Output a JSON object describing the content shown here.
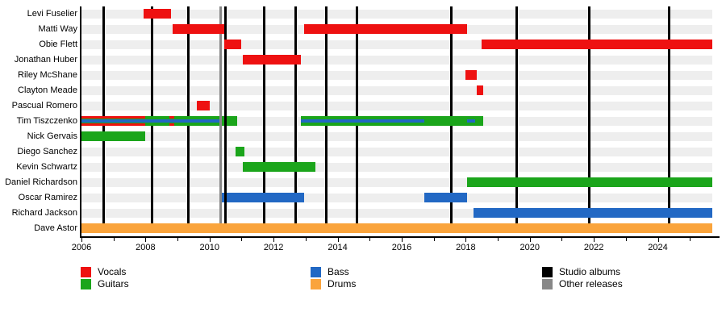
{
  "colors": {
    "vocals": "#ee1111",
    "guitars": "#1ba51b",
    "bass": "#2268c4",
    "drums": "#faa43c",
    "studio_albums": "#000000",
    "other_releases": "#888888"
  },
  "legend": {
    "columns": [
      {
        "items": [
          {
            "label": "Vocals",
            "key": "vocals"
          },
          {
            "label": "Guitars",
            "key": "guitars"
          }
        ]
      },
      {
        "items": [
          {
            "label": "Bass",
            "key": "bass"
          },
          {
            "label": "Drums",
            "key": "drums"
          }
        ]
      },
      {
        "items": [
          {
            "label": "Studio albums",
            "key": "studio_albums"
          },
          {
            "label": "Other releases",
            "key": "other_releases"
          }
        ]
      }
    ]
  },
  "chart_data": {
    "type": "timeline",
    "title": "",
    "x_axis": {
      "min": 2006,
      "max": 2025.7,
      "tick_step": 1,
      "label_years": [
        2006,
        2008,
        2010,
        2012,
        2014,
        2016,
        2018,
        2020,
        2022,
        2024
      ]
    },
    "studio_album_years": [
      2006.7,
      2008.2,
      2009.35,
      2010.5,
      2011.7,
      2012.7,
      2013.65,
      2014.6,
      2017.55,
      2019.6,
      2021.85,
      2024.35
    ],
    "other_release_years": [
      2010.35
    ],
    "members": [
      {
        "name": "Levi Fuselier",
        "segments": [
          {
            "role": "vocals",
            "start": 2007.95,
            "end": 2008.8,
            "band": "full"
          }
        ]
      },
      {
        "name": "Matti Way",
        "segments": [
          {
            "role": "vocals",
            "start": 2008.85,
            "end": 2010.45,
            "band": "full"
          },
          {
            "role": "vocals",
            "start": 2012.95,
            "end": 2018.05,
            "band": "full"
          }
        ]
      },
      {
        "name": "Obie Flett",
        "segments": [
          {
            "role": "vocals",
            "start": 2010.45,
            "end": 2011.0,
            "band": "full"
          },
          {
            "role": "vocals",
            "start": 2018.5,
            "end": 2025.7,
            "band": "full"
          }
        ]
      },
      {
        "name": "Jonathan Huber",
        "segments": [
          {
            "role": "vocals",
            "start": 2011.05,
            "end": 2012.85,
            "band": "full"
          }
        ]
      },
      {
        "name": "Riley McShane",
        "segments": [
          {
            "role": "vocals",
            "start": 2018.0,
            "end": 2018.35,
            "band": "full"
          }
        ]
      },
      {
        "name": "Clayton Meade",
        "segments": [
          {
            "role": "vocals",
            "start": 2018.35,
            "end": 2018.55,
            "band": "full"
          }
        ]
      },
      {
        "name": "Pascual Romero",
        "segments": [
          {
            "role": "vocals",
            "start": 2009.6,
            "end": 2010.0,
            "band": "full"
          }
        ]
      },
      {
        "name": "Tim Tiszczenko",
        "segments": [
          {
            "role": "guitars",
            "start": 2006.0,
            "end": 2010.85,
            "band": "full"
          },
          {
            "role": "bass",
            "start": 2006.0,
            "end": 2010.3,
            "band": "mid"
          },
          {
            "role": "vocals",
            "start": 2006.0,
            "end": 2008.0,
            "band": "edges"
          },
          {
            "role": "vocals",
            "start": 2008.75,
            "end": 2008.9,
            "band": "edges"
          },
          {
            "role": "guitars",
            "start": 2012.85,
            "end": 2018.55,
            "band": "full"
          },
          {
            "role": "bass",
            "start": 2012.85,
            "end": 2016.7,
            "band": "mid"
          },
          {
            "role": "bass",
            "start": 2018.05,
            "end": 2018.3,
            "band": "mid"
          }
        ]
      },
      {
        "name": "Nick Gervais",
        "segments": [
          {
            "role": "guitars",
            "start": 2006.0,
            "end": 2008.0,
            "band": "full"
          }
        ]
      },
      {
        "name": "Diego Sanchez",
        "segments": [
          {
            "role": "guitars",
            "start": 2010.8,
            "end": 2011.1,
            "band": "full"
          }
        ]
      },
      {
        "name": "Kevin Schwartz",
        "segments": [
          {
            "role": "guitars",
            "start": 2011.05,
            "end": 2013.3,
            "band": "full"
          }
        ]
      },
      {
        "name": "Daniel Richardson",
        "segments": [
          {
            "role": "guitars",
            "start": 2018.05,
            "end": 2025.7,
            "band": "full"
          }
        ]
      },
      {
        "name": "Oscar Ramirez",
        "segments": [
          {
            "role": "bass",
            "start": 2010.3,
            "end": 2012.95,
            "band": "full"
          },
          {
            "role": "bass",
            "start": 2016.7,
            "end": 2018.05,
            "band": "full"
          }
        ]
      },
      {
        "name": "Richard Jackson",
        "segments": [
          {
            "role": "bass",
            "start": 2018.25,
            "end": 2025.7,
            "band": "full"
          }
        ]
      },
      {
        "name": "Dave Astor",
        "segments": [
          {
            "role": "drums",
            "start": 2006.0,
            "end": 2025.7,
            "band": "full"
          }
        ]
      }
    ]
  }
}
